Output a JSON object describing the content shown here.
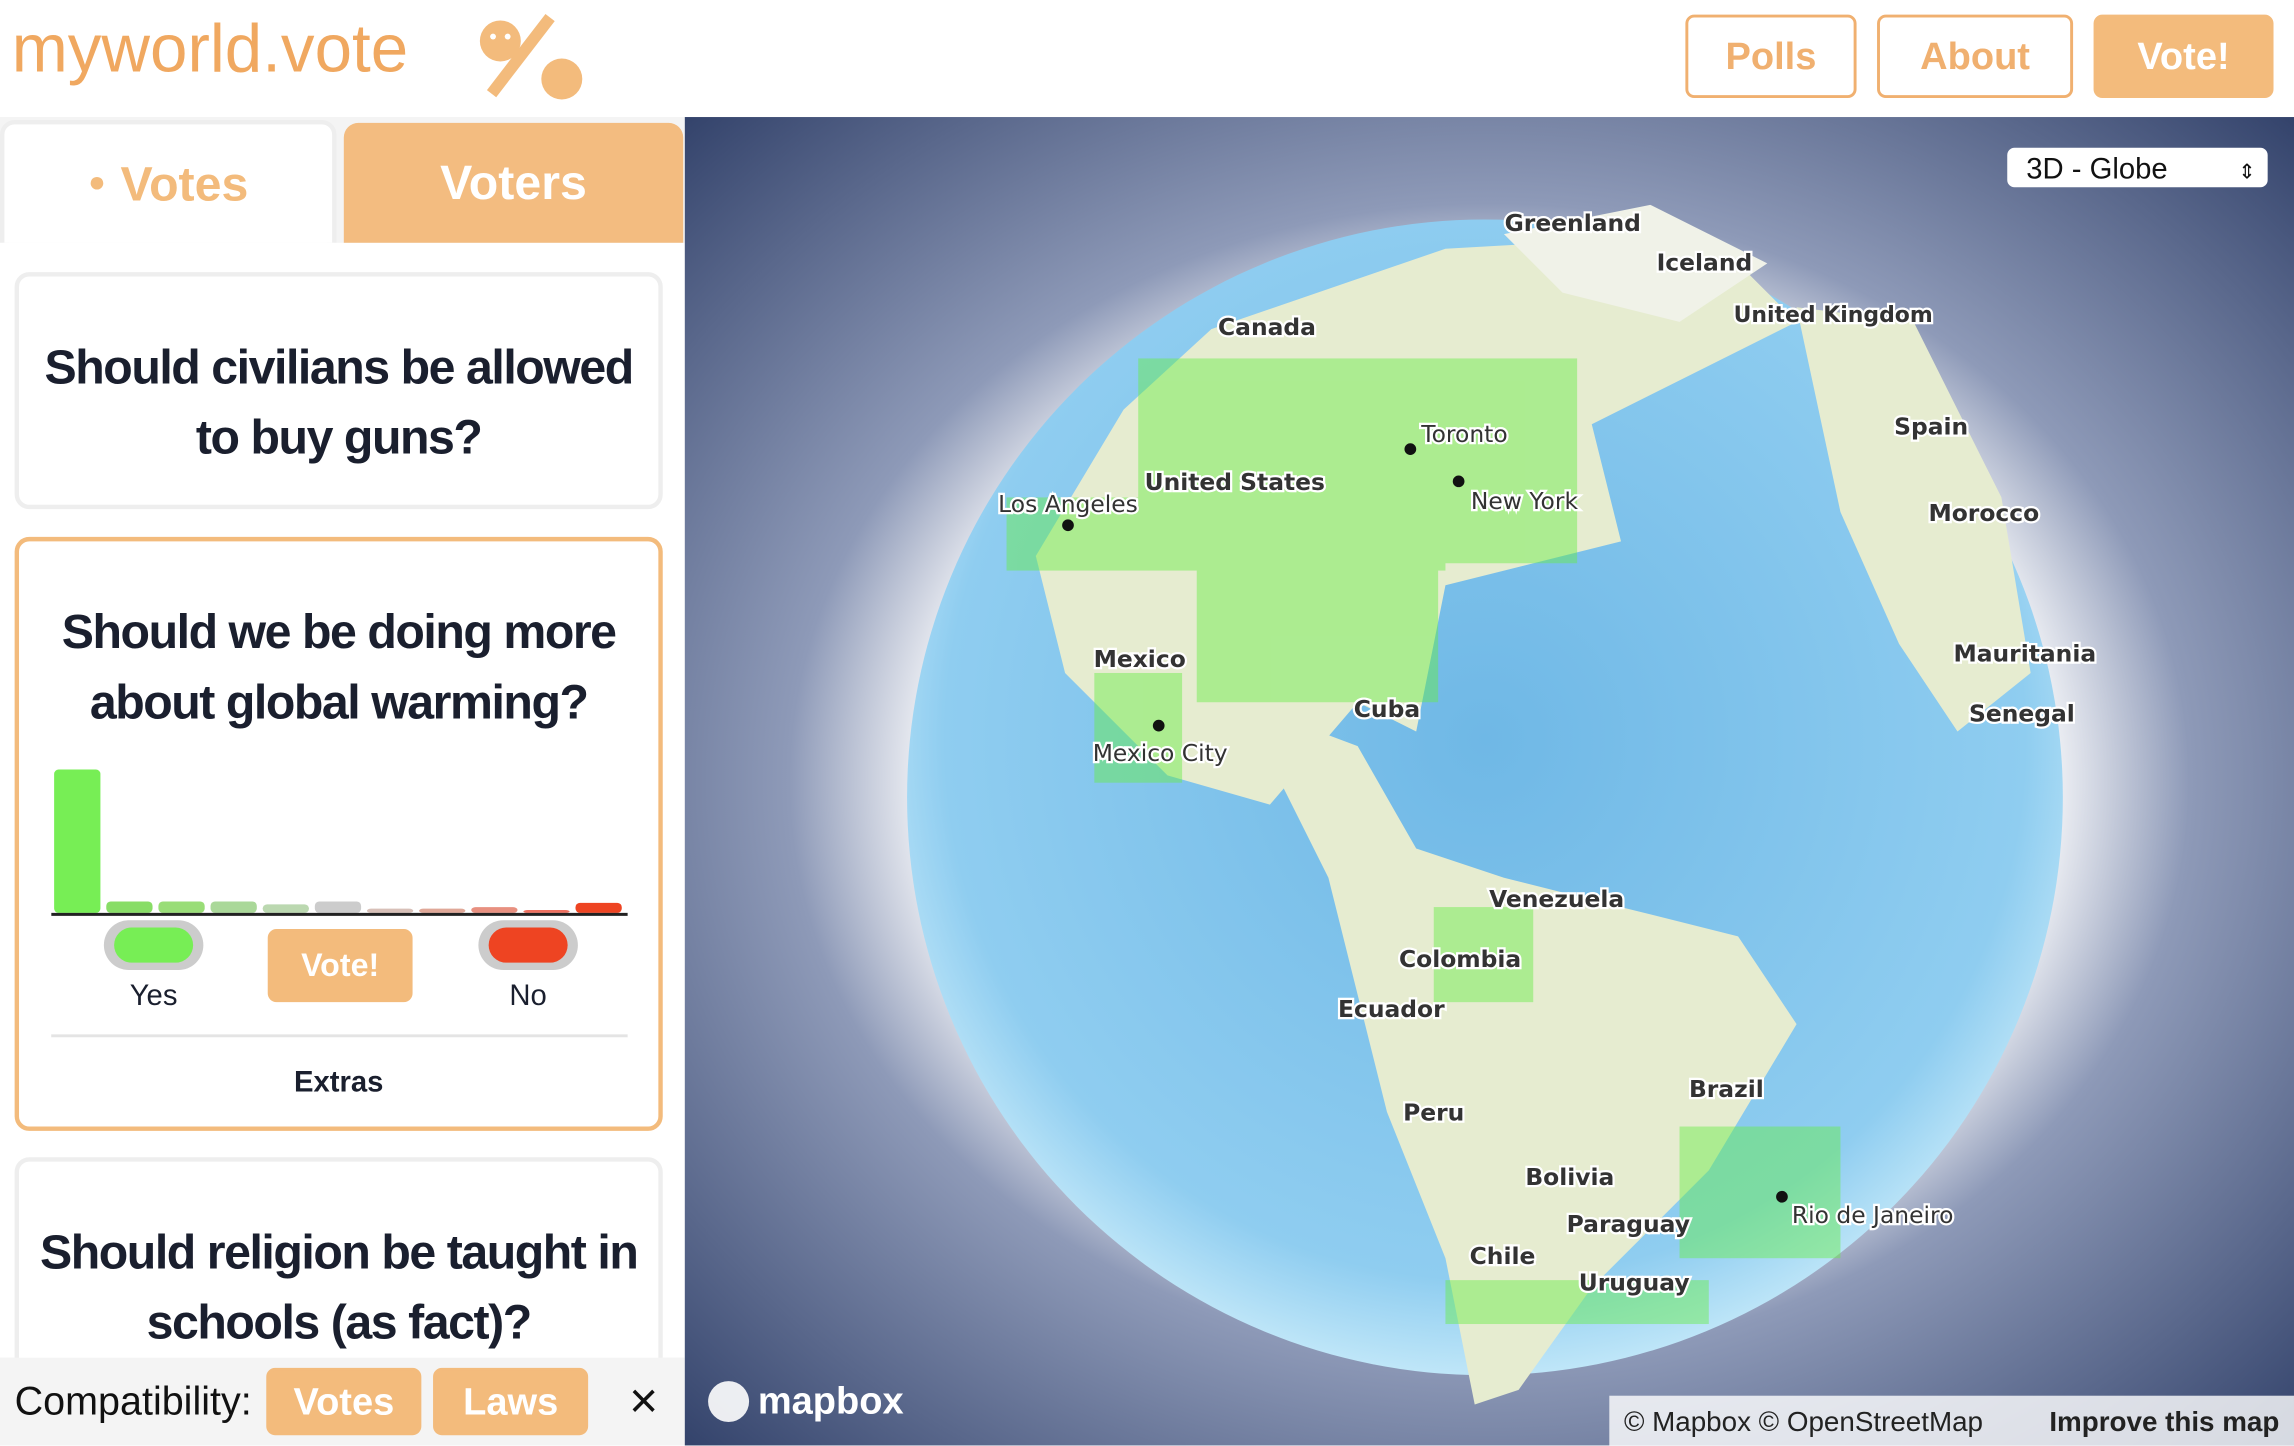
{
  "header": {
    "logo": "myworld.vote",
    "nav": [
      "Polls",
      "About",
      "Vote!"
    ]
  },
  "tabs": [
    "Votes",
    "Voters"
  ],
  "polls": [
    {
      "question": "Should civilians be allowed to buy guns?"
    },
    {
      "question": "Should we be doing more about global warming?",
      "histogram": {
        "values": [
          100,
          8,
          8,
          8,
          6,
          8,
          3,
          3,
          4,
          2,
          7
        ],
        "colors": [
          "#77ee55",
          "#88dd66",
          "#99dd77",
          "#aad899",
          "#bbd8b0",
          "#cccccc",
          "#d8c0b8",
          "#e0a898",
          "#e89080",
          "#ee7060",
          "#ee4422"
        ]
      },
      "yes": "Yes",
      "vote": "Vote!",
      "no": "No",
      "extras": "Extras"
    },
    {
      "question": "Should religion be taught in schools (as fact)?"
    }
  ],
  "compatibility": {
    "label": "Compatibility:",
    "buttons": [
      "Votes",
      "Laws"
    ],
    "close": "×"
  },
  "map": {
    "mode": "3D - Globe",
    "logo": "mapbox",
    "labels": [
      "Greenland",
      "Iceland",
      "United Kingdom",
      "Canada",
      "Toronto",
      "Spain",
      "United States",
      "Los Angeles",
      "New York",
      "Morocco",
      "Mauritania",
      "Mexico",
      "Senegal",
      "Cuba",
      "Mexico City",
      "Venezuela",
      "Colombia",
      "Ecuador",
      "Brazil",
      "Peru",
      "Bolivia",
      "Rio de Janeiro",
      "Paraguay",
      "Chile",
      "Uruguay"
    ],
    "attribution": "© Mapbox © OpenStreetMap",
    "improve": "Improve this map"
  }
}
